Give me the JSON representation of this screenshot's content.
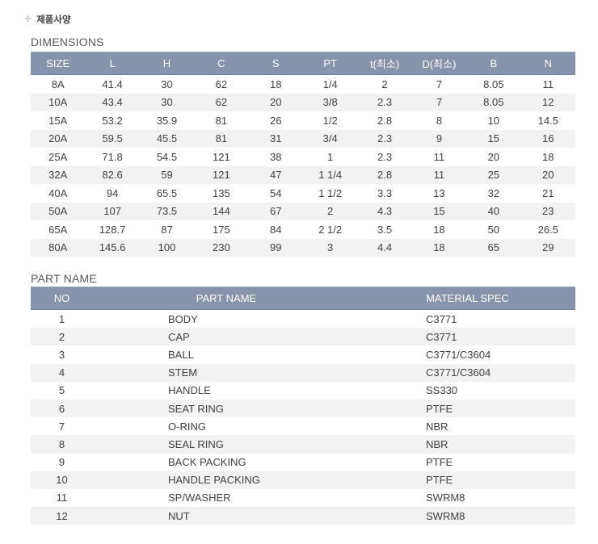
{
  "breadcrumb": {
    "icon": "plus-icon",
    "label": "제품사양"
  },
  "colors": {
    "table_header_bg": "#8593ab",
    "table_header_text": "#ffffff",
    "row_alt_bg": "#f2f2f2",
    "body_text": "#404040",
    "heading_text": "#5a5a5a"
  },
  "dimensions_section": {
    "title": "DIMENSIONS",
    "table": {
      "headers": [
        "SIZE",
        "L",
        "H",
        "C",
        "S",
        "PT",
        "t(최소)",
        "D(최소)",
        "B",
        "N"
      ],
      "rows": [
        [
          "8A",
          "41.4",
          "30",
          "62",
          "18",
          "1/4",
          "2",
          "7",
          "8.05",
          "11"
        ],
        [
          "10A",
          "43.4",
          "30",
          "62",
          "20",
          "3/8",
          "2.3",
          "7",
          "8.05",
          "12"
        ],
        [
          "15A",
          "53.2",
          "35.9",
          "81",
          "26",
          "1/2",
          "2.8",
          "8",
          "10",
          "14.5"
        ],
        [
          "20A",
          "59.5",
          "45.5",
          "81",
          "31",
          "3/4",
          "2.3",
          "9",
          "15",
          "16"
        ],
        [
          "25A",
          "71.8",
          "54.5",
          "121",
          "38",
          "1",
          "2.3",
          "11",
          "20",
          "18"
        ],
        [
          "32A",
          "82.6",
          "59",
          "121",
          "47",
          "1 1/4",
          "2.8",
          "11",
          "25",
          "20"
        ],
        [
          "40A",
          "94",
          "65.5",
          "135",
          "54",
          "1 1/2",
          "3.3",
          "13",
          "32",
          "21"
        ],
        [
          "50A",
          "107",
          "73.5",
          "144",
          "67",
          "2",
          "4.3",
          "15",
          "40",
          "23"
        ],
        [
          "65A",
          "128.7",
          "87",
          "175",
          "84",
          "2 1/2",
          "3.5",
          "18",
          "50",
          "26.5"
        ],
        [
          "80A",
          "145.6",
          "100",
          "230",
          "99",
          "3",
          "4.4",
          "18",
          "65",
          "29"
        ]
      ]
    }
  },
  "part_name_section": {
    "title": "PART NAME",
    "table": {
      "headers": [
        "NO",
        "PART NAME",
        "MATERIAL SPEC"
      ],
      "rows": [
        [
          "1",
          "BODY",
          "C3771"
        ],
        [
          "2",
          "CAP",
          "C3771"
        ],
        [
          "3",
          "BALL",
          "C3771/C3604"
        ],
        [
          "4",
          "STEM",
          "C3771/C3604"
        ],
        [
          "5",
          "HANDLE",
          "SS330"
        ],
        [
          "6",
          "SEAT RING",
          "PTFE"
        ],
        [
          "7",
          "O-RING",
          "NBR"
        ],
        [
          "8",
          "SEAL RING",
          "NBR"
        ],
        [
          "9",
          "BACK PACKING",
          "PTFE"
        ],
        [
          "10",
          "HANDLE PACKING",
          "PTFE"
        ],
        [
          "11",
          "SP/WASHER",
          "SWRM8"
        ],
        [
          "12",
          "NUT",
          "SWRM8"
        ]
      ]
    }
  }
}
